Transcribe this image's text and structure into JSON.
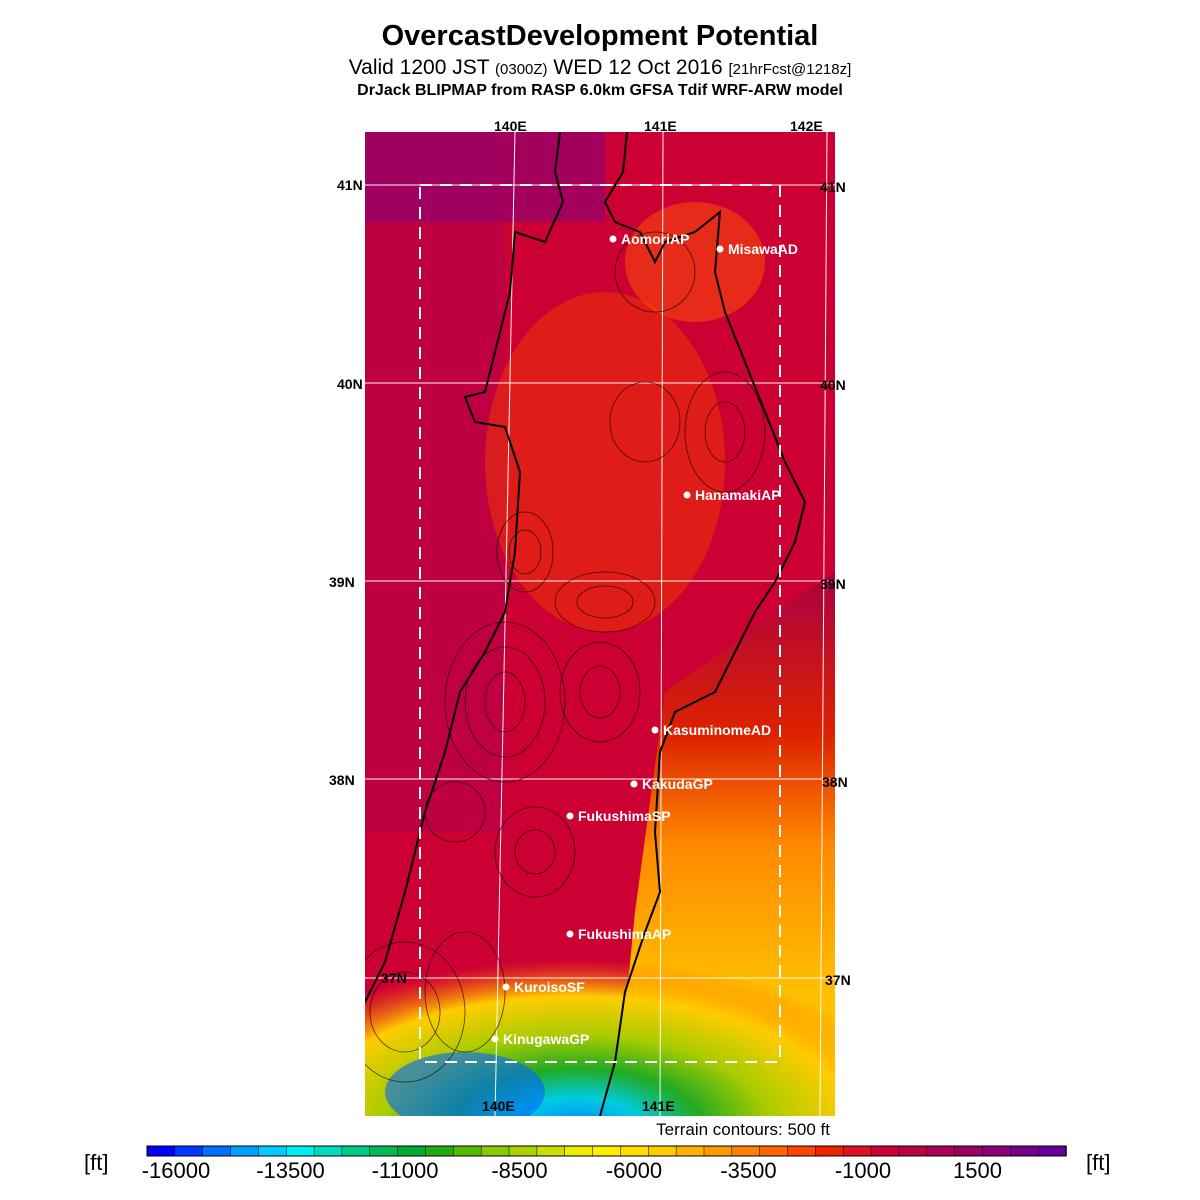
{
  "header": {
    "title": "OvercastDevelopment Potential",
    "valid_main": "Valid 1200 JST",
    "valid_zulu": "(0300Z)",
    "valid_date": "WED 12 Oct 2016",
    "valid_fcst": "[21hrFcst@1218z]",
    "model_line": "DrJack BLIPMAP from RASP 6.0km GFSA Tdif WRF-ARW model"
  },
  "map": {
    "lon_labels_top": [
      "140E",
      "141E",
      "142E"
    ],
    "lon_labels_bottom": [
      "140E",
      "141E"
    ],
    "lat_labels_left": [
      "41N",
      "40N",
      "39N",
      "38N",
      "37N"
    ],
    "lat_labels_right": [
      "41N",
      "40N",
      "39N",
      "38N",
      "37N"
    ],
    "stations": [
      {
        "name": "AomoriAP"
      },
      {
        "name": "MisawaAD"
      },
      {
        "name": "HanamakiAP"
      },
      {
        "name": "KasuminomeAD"
      },
      {
        "name": "KakudaGP"
      },
      {
        "name": "FukushimaSP"
      },
      {
        "name": "FukushimaAP"
      },
      {
        "name": "KuroisoSF"
      },
      {
        "name": "KinugawaGP"
      }
    ],
    "terrain_note": "Terrain contours: 500 ft"
  },
  "colorbar": {
    "unit_left": "[ft]",
    "unit_right": "[ft]",
    "tick_labels": [
      "-16000",
      "-13500",
      "-11000",
      "-8500",
      "-6000",
      "-3500",
      "-1000",
      "1500"
    ],
    "colors": [
      "#0000ff",
      "#0038ff",
      "#0070ff",
      "#00a0ff",
      "#00ccff",
      "#00eeee",
      "#00ddbb",
      "#00cc88",
      "#00bb55",
      "#00aa33",
      "#22aa11",
      "#55bb00",
      "#88cc00",
      "#aad400",
      "#ccdd00",
      "#eeee00",
      "#ffee00",
      "#ffdd00",
      "#ffcc00",
      "#ffb000",
      "#ff9900",
      "#ff8000",
      "#ff6600",
      "#ff4400",
      "#ee2200",
      "#dd1122",
      "#cc0033",
      "#bb0044",
      "#aa0055",
      "#990066",
      "#880077",
      "#770088",
      "#660099"
    ]
  }
}
